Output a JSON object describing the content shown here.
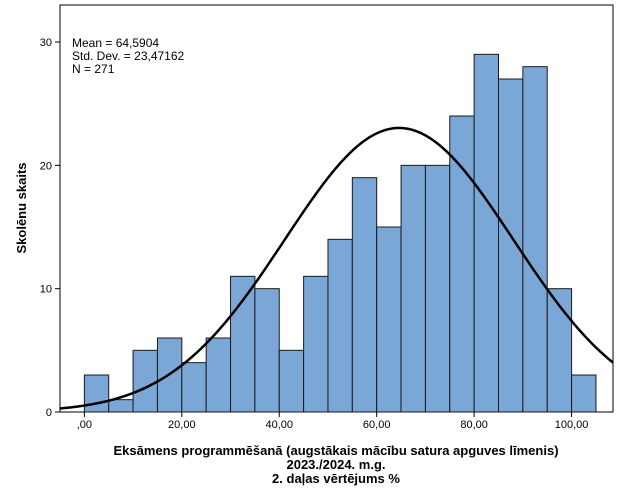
{
  "chart_data": {
    "type": "bar",
    "subtype": "histogram",
    "x_bin_start": 0,
    "x_bin_width": 5,
    "values": [
      3,
      1,
      5,
      6,
      4,
      6,
      11,
      10,
      5,
      11,
      14,
      19,
      15,
      20,
      20,
      24,
      29,
      27,
      28,
      10,
      3
    ],
    "xlim": [
      -5,
      108.5
    ],
    "ylim": [
      0,
      33
    ],
    "x_ticks": [
      0,
      20,
      40,
      60,
      80,
      100
    ],
    "x_tick_labels": [
      ",00",
      "20,00",
      "40,00",
      "60,00",
      "80,00",
      "100,00"
    ],
    "y_ticks": [
      0,
      10,
      20,
      30
    ],
    "y_tick_labels": [
      "0",
      "10",
      "20",
      "30"
    ],
    "ylabel": "Skolēnu skaits",
    "xlabel_lines": [
      "Eksāmens programmēšanā (augstākais mācību satura apguves līmenis)",
      "2023./2024. m.g.",
      "2. daļas vērtējums %"
    ],
    "stats": {
      "mean_label": "Mean = 64,5904",
      "sd_label": "Std. Dev. = 23,47162",
      "n_label": "N = 271"
    },
    "normal_curve": {
      "mean": 64.5904,
      "sd": 23.47162,
      "n": 271
    },
    "grid": false,
    "colors": {
      "bar_fill": "#7ba7d7",
      "bar_stroke": "#1a1a1a",
      "curve": "#000000"
    }
  }
}
